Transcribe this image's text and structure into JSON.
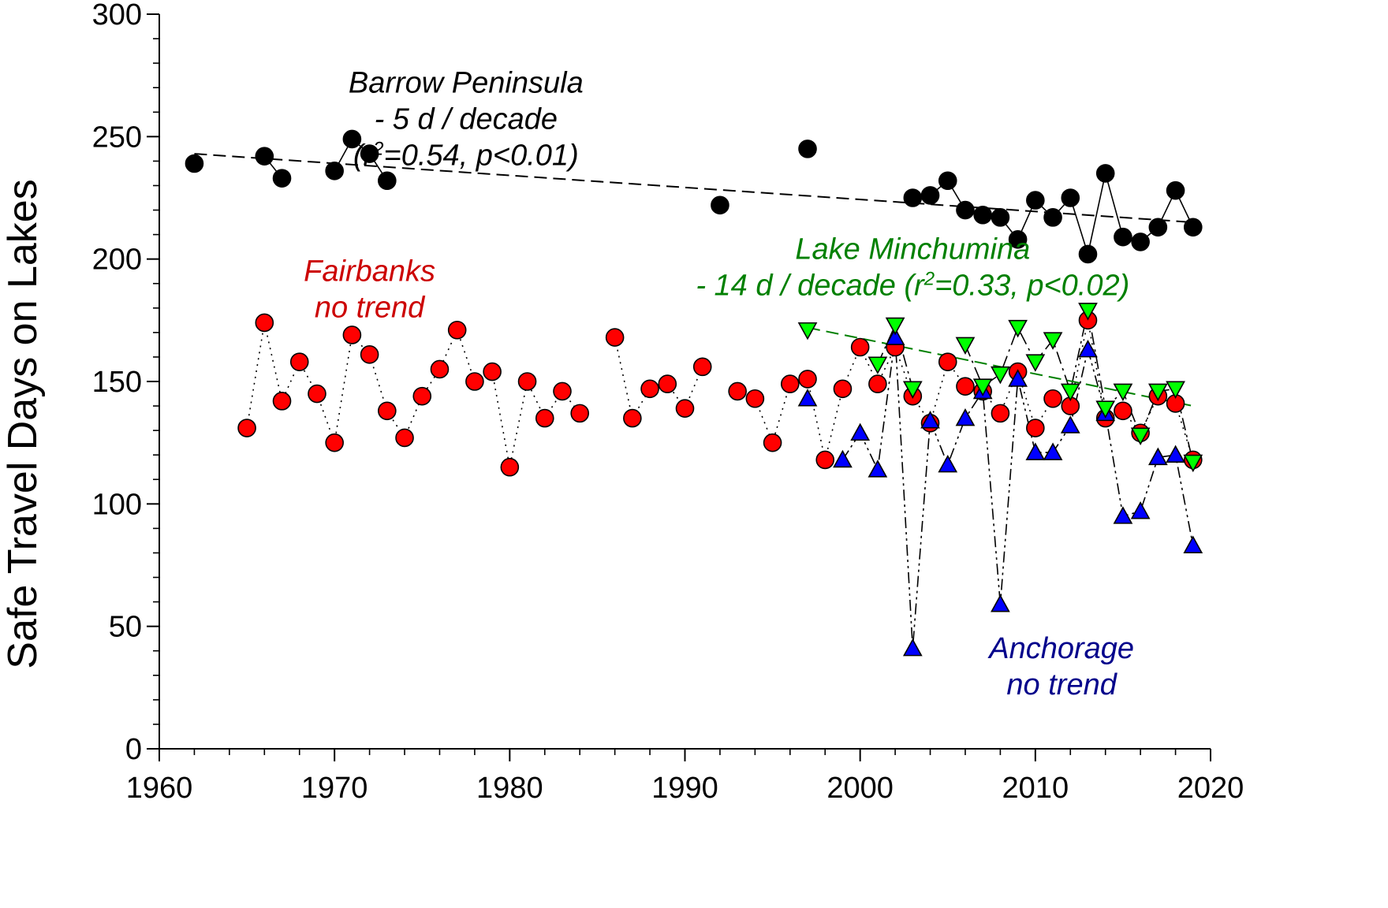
{
  "chart_data": {
    "type": "scatter",
    "title": "",
    "xlabel": "",
    "ylabel": "Safe Travel Days on Lakes",
    "xlim": [
      1960,
      2020
    ],
    "ylim": [
      0,
      300
    ],
    "x_ticks": [
      "1960",
      "1970",
      "1980",
      "1990",
      "2000",
      "2010",
      "2020"
    ],
    "y_ticks": [
      "0",
      "50",
      "100",
      "150",
      "200",
      "250",
      "300"
    ],
    "grid": false,
    "legend": "none",
    "series": [
      {
        "key": "barrow",
        "color": "#000000",
        "marker": "circle",
        "line": "solid",
        "points": [
          [
            1962,
            239
          ],
          [
            1966,
            242
          ],
          [
            1967,
            233
          ],
          [
            1970,
            236
          ],
          [
            1971,
            249
          ],
          [
            1972,
            243
          ],
          [
            1973,
            232
          ],
          [
            1992,
            222
          ],
          [
            1997,
            245
          ],
          [
            2003,
            225
          ],
          [
            2004,
            226
          ],
          [
            2005,
            232
          ],
          [
            2006,
            220
          ],
          [
            2007,
            218
          ],
          [
            2008,
            217
          ],
          [
            2009,
            208
          ],
          [
            2010,
            224
          ],
          [
            2011,
            217
          ],
          [
            2012,
            225
          ],
          [
            2013,
            202
          ],
          [
            2014,
            235
          ],
          [
            2015,
            209
          ],
          [
            2016,
            207
          ],
          [
            2017,
            213
          ],
          [
            2018,
            228
          ],
          [
            2019,
            213
          ]
        ],
        "trend": {
          "x": [
            1962,
            2019
          ],
          "y": [
            243,
            215
          ],
          "color": "#000000"
        }
      },
      {
        "key": "fairbanks",
        "color": "#ff0000",
        "marker": "circle",
        "line": "dotted",
        "points": [
          [
            1965,
            131
          ],
          [
            1966,
            174
          ],
          [
            1967,
            142
          ],
          [
            1968,
            158
          ],
          [
            1969,
            145
          ],
          [
            1970,
            125
          ],
          [
            1971,
            169
          ],
          [
            1972,
            161
          ],
          [
            1973,
            138
          ],
          [
            1974,
            127
          ],
          [
            1975,
            144
          ],
          [
            1976,
            155
          ],
          [
            1977,
            171
          ],
          [
            1978,
            150
          ],
          [
            1979,
            154
          ],
          [
            1980,
            115
          ],
          [
            1981,
            150
          ],
          [
            1982,
            135
          ],
          [
            1983,
            146
          ],
          [
            1984,
            137
          ],
          [
            1986,
            168
          ],
          [
            1987,
            135
          ],
          [
            1988,
            147
          ],
          [
            1989,
            149
          ],
          [
            1990,
            139
          ],
          [
            1991,
            156
          ],
          [
            1993,
            146
          ],
          [
            1994,
            143
          ],
          [
            1995,
            125
          ],
          [
            1996,
            149
          ],
          [
            1997,
            151
          ],
          [
            1998,
            118
          ],
          [
            1999,
            147
          ],
          [
            2000,
            164
          ],
          [
            2001,
            149
          ],
          [
            2002,
            164
          ],
          [
            2003,
            144
          ],
          [
            2004,
            133
          ],
          [
            2005,
            158
          ],
          [
            2006,
            148
          ],
          [
            2007,
            146
          ],
          [
            2008,
            137
          ],
          [
            2009,
            154
          ],
          [
            2010,
            131
          ],
          [
            2011,
            143
          ],
          [
            2012,
            140
          ],
          [
            2013,
            175
          ],
          [
            2014,
            135
          ],
          [
            2015,
            138
          ],
          [
            2016,
            129
          ],
          [
            2017,
            144
          ],
          [
            2018,
            141
          ],
          [
            2019,
            118
          ]
        ]
      },
      {
        "key": "anchorage",
        "color": "#0000ff",
        "marker": "triangle-up",
        "line": "dash-dot-dot",
        "points": [
          [
            1997,
            143
          ],
          [
            1999,
            118
          ],
          [
            2000,
            129
          ],
          [
            2001,
            114
          ],
          [
            2002,
            168
          ],
          [
            2003,
            41
          ],
          [
            2004,
            134
          ],
          [
            2005,
            116
          ],
          [
            2006,
            135
          ],
          [
            2007,
            146
          ],
          [
            2008,
            59
          ],
          [
            2009,
            151
          ],
          [
            2010,
            121
          ],
          [
            2011,
            121
          ],
          [
            2012,
            132
          ],
          [
            2013,
            163
          ],
          [
            2014,
            137
          ],
          [
            2015,
            95
          ],
          [
            2016,
            97
          ],
          [
            2017,
            119
          ],
          [
            2018,
            120
          ],
          [
            2019,
            83
          ]
        ]
      },
      {
        "key": "minchumina",
        "color": "#00ff00",
        "marker": "triangle-down",
        "line": "dash-dot",
        "points": [
          [
            1997,
            171
          ],
          [
            2001,
            157
          ],
          [
            2002,
            173
          ],
          [
            2003,
            147
          ],
          [
            2006,
            165
          ],
          [
            2007,
            148
          ],
          [
            2008,
            153
          ],
          [
            2009,
            172
          ],
          [
            2010,
            158
          ],
          [
            2011,
            167
          ],
          [
            2012,
            146
          ],
          [
            2013,
            179
          ],
          [
            2014,
            139
          ],
          [
            2015,
            146
          ],
          [
            2016,
            128
          ],
          [
            2017,
            146
          ],
          [
            2018,
            147
          ],
          [
            2019,
            117
          ]
        ],
        "trend": {
          "x": [
            1997,
            2019
          ],
          "y": [
            172,
            140
          ],
          "color": "#008000"
        }
      }
    ],
    "annotations": [
      {
        "key": "barrow",
        "x": 1977.5,
        "y": 268,
        "color": "#000000",
        "lines": [
          [
            {
              "t": "Barrow Peninsula"
            }
          ],
          [
            {
              "t": "- 5 d / decade"
            }
          ],
          [
            {
              "t": "(r"
            },
            {
              "t": "2",
              "sup": true
            },
            {
              "t": "=0.54, p<0.01)"
            }
          ]
        ]
      },
      {
        "key": "fairbanks",
        "x": 1972,
        "y": 191,
        "color": "#cc0000",
        "lines": [
          [
            {
              "t": "Fairbanks"
            }
          ],
          [
            {
              "t": "no trend"
            }
          ]
        ]
      },
      {
        "key": "minchumina",
        "x": 2003,
        "y": 200,
        "color": "#008000",
        "lines": [
          [
            {
              "t": "Lake Minchumina"
            }
          ],
          [
            {
              "t": "- 14 d / decade (r"
            },
            {
              "t": "2",
              "sup": true
            },
            {
              "t": "=0.33, p<0.02)"
            }
          ]
        ]
      },
      {
        "key": "anchorage",
        "x": 2011.5,
        "y": 37,
        "color": "#00008b",
        "lines": [
          [
            {
              "t": "Anchorage"
            }
          ],
          [
            {
              "t": "no trend"
            }
          ]
        ]
      }
    ]
  }
}
